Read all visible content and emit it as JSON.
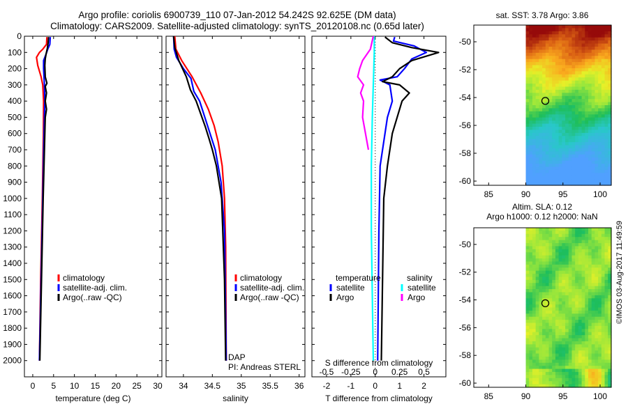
{
  "title": {
    "line1": "Argo profile: coriolis 6900739_110 07-Jan-2012 54.242S 92.625E (DM data)",
    "line2": "Climatology: CARS2009. Satellite-adjusted climatology: synTS_20120108.nc (0.65d later)"
  },
  "colors": {
    "climatology": "#ff0000",
    "satellite": "#0000ff",
    "argo": "#000000",
    "sat_salinity": "#00ffff",
    "argo_salinity": "#ff00ff"
  },
  "chart_data": [
    {
      "type": "line",
      "id": "temperature",
      "xlabel": "temperature (deg C)",
      "xlim": [
        -2,
        31
      ],
      "xticks": [
        "0",
        "5",
        "10",
        "15",
        "20",
        "25",
        "30"
      ],
      "xtick_values": [
        0,
        5,
        10,
        15,
        20,
        25,
        30
      ],
      "ylim": [
        0,
        2100
      ],
      "ytick_values": [
        0,
        100,
        200,
        300,
        400,
        500,
        600,
        700,
        800,
        900,
        1000,
        1100,
        1200,
        1300,
        1400,
        1500,
        1600,
        1700,
        1800,
        1900,
        2000
      ],
      "yticks": [
        "0",
        "100",
        "200",
        "300",
        "400",
        "500",
        "600",
        "700",
        "800",
        "900",
        "1000",
        "1100",
        "1200",
        "1300",
        "1400",
        "1500",
        "1600",
        "1700",
        "1800",
        "1900",
        "2000"
      ],
      "legend": [
        "climatology",
        "satellite-adj. clim.",
        "Argo(..raw -QC)"
      ],
      "series": [
        {
          "name": "climatology",
          "depth": [
            5,
            50,
            80,
            100,
            130,
            180,
            250,
            300,
            400,
            600,
            1000,
            1500,
            2000
          ],
          "values": [
            3.4,
            3.3,
            2.4,
            1.6,
            0.9,
            1.2,
            2.0,
            2.4,
            2.6,
            2.55,
            2.3,
            1.9,
            1.6
          ]
        },
        {
          "name": "satellite-adj. clim.",
          "depth": [
            5,
            50,
            80,
            110,
            150,
            200,
            300,
            400,
            600,
            1000,
            1500,
            2000
          ],
          "values": [
            4.2,
            4.1,
            3.6,
            3.2,
            2.6,
            2.6,
            2.8,
            2.9,
            2.7,
            2.4,
            2.0,
            1.6
          ]
        },
        {
          "name": "Argo(..raw -QC)",
          "depth": [
            5,
            40,
            75,
            110,
            140,
            180,
            250,
            290,
            310,
            350,
            400,
            450,
            500,
            1000,
            1500,
            2000
          ],
          "values": [
            3.8,
            3.7,
            3.5,
            3.2,
            3.0,
            2.9,
            3.0,
            3.4,
            3.0,
            3.3,
            3.0,
            3.3,
            3.0,
            2.5,
            2.1,
            1.7
          ]
        }
      ]
    },
    {
      "type": "line",
      "id": "salinity",
      "xlabel": "salinity",
      "xlim": [
        33.7,
        36.1
      ],
      "xticks": [
        "34",
        "34.5",
        "35",
        "35.5",
        "36"
      ],
      "xtick_values": [
        34,
        34.5,
        35,
        35.5,
        36
      ],
      "ylim": [
        0,
        2100
      ],
      "legend": [
        "climatology",
        "satellite-adj. clim.",
        "Argo(..raw -QC)"
      ],
      "annotations": [
        "DAP",
        "PI: Andreas STERL"
      ],
      "series": [
        {
          "name": "climatology",
          "depth": [
            0,
            80,
            150,
            250,
            350,
            450,
            550,
            650,
            800,
            1000,
            1300,
            2000
          ],
          "values": [
            33.85,
            33.87,
            33.97,
            34.15,
            34.3,
            34.43,
            34.53,
            34.6,
            34.67,
            34.71,
            34.73,
            34.74
          ]
        },
        {
          "name": "satellite-adj. clim.",
          "depth": [
            0,
            80,
            130,
            200,
            260,
            340,
            400,
            500,
            600,
            700,
            900,
            1200,
            2000
          ],
          "values": [
            33.83,
            33.84,
            33.88,
            34.0,
            34.13,
            34.18,
            34.28,
            34.37,
            34.46,
            34.55,
            34.65,
            34.71,
            34.74
          ]
        },
        {
          "name": "Argo(..raw -QC)",
          "depth": [
            0,
            70,
            150,
            250,
            330,
            400,
            480,
            560,
            640,
            700,
            800,
            1000,
            1500,
            2000
          ],
          "values": [
            33.83,
            33.85,
            33.92,
            34.05,
            34.12,
            34.22,
            34.3,
            34.38,
            34.45,
            34.5,
            34.57,
            34.66,
            34.71,
            34.73
          ]
        }
      ]
    },
    {
      "type": "line",
      "id": "differences",
      "xlabel": "T difference from climatology",
      "xlim": [
        -2.6,
        2.9
      ],
      "xticks": [
        "-2",
        "-1",
        "0",
        "1",
        "2"
      ],
      "xtick_values": [
        -2,
        -1,
        0,
        1,
        2
      ],
      "top_xlabel": "S difference from climatology",
      "top_xticks": [
        "-0.5",
        "-0.25",
        "0",
        "0.25",
        "0.5"
      ],
      "top_xtick_values": [
        -0.5,
        -0.25,
        0,
        0.25,
        0.5
      ],
      "ylim": [
        0,
        2100
      ],
      "legend_groups": [
        {
          "title": "temperature",
          "items": [
            "satellite",
            "Argo"
          ]
        },
        {
          "title": "salinity",
          "items": [
            "satellite",
            "Argo"
          ]
        }
      ],
      "series": [
        {
          "name": "temperature satellite",
          "axis": "T",
          "depth": [
            5,
            30,
            60,
            100,
            140,
            200,
            250,
            270,
            300,
            400,
            500,
            800,
            1200,
            2000
          ],
          "values": [
            0.8,
            0.75,
            1.6,
            2.1,
            1.5,
            1.2,
            0.9,
            0.2,
            0.6,
            0.7,
            0.5,
            0.2,
            0.15,
            0.1
          ]
        },
        {
          "name": "temperature Argo",
          "axis": "T",
          "depth": [
            5,
            40,
            70,
            100,
            150,
            200,
            250,
            280,
            300,
            350,
            400,
            500,
            600,
            800,
            1000,
            1500,
            2000
          ],
          "values": [
            0.4,
            0.7,
            1.5,
            2.6,
            1.5,
            1.0,
            0.7,
            0.3,
            1.0,
            1.4,
            1.1,
            0.9,
            0.7,
            0.5,
            0.35,
            0.3,
            0.25
          ]
        },
        {
          "name": "salinity satellite",
          "axis": "S",
          "depth": [
            0,
            100,
            300,
            500,
            800,
            1200,
            1600,
            2000
          ],
          "values": [
            -0.01,
            -0.01,
            -0.02,
            -0.03,
            -0.04,
            -0.04,
            -0.03,
            -0.02
          ]
        },
        {
          "name": "salinity Argo",
          "axis": "S",
          "depth": [
            0,
            80,
            150,
            200,
            250,
            300,
            350,
            400,
            500,
            600,
            700
          ],
          "values": [
            -0.02,
            -0.05,
            -0.13,
            -0.16,
            -0.18,
            -0.12,
            -0.15,
            -0.12,
            -0.13,
            -0.1,
            -0.07
          ]
        }
      ]
    },
    {
      "type": "heatmap",
      "id": "sst_map",
      "title": "sat. SST: 3.78  Argo: 3.86",
      "xticks": [
        "85",
        "90",
        "95",
        "100"
      ],
      "xtick_values": [
        85,
        90,
        95,
        100
      ],
      "yticks": [
        "-50",
        "-52",
        "-54",
        "-56",
        "-58",
        "-60"
      ],
      "ytick_values": [
        -50,
        -52,
        -54,
        -56,
        -58,
        -60
      ],
      "xlim": [
        83,
        101.5
      ],
      "ylim": [
        -60.3,
        -48.8
      ],
      "data_xlim": [
        90,
        101.5
      ],
      "marker": {
        "lon": 92.625,
        "lat": -54.242
      }
    },
    {
      "type": "heatmap",
      "id": "sla_map",
      "title": [
        "Altim. SLA: 0.12",
        "Argo h1000: 0.12 h2000: NaN"
      ],
      "xticks": [
        "85",
        "90",
        "95",
        "100"
      ],
      "xtick_values": [
        85,
        90,
        95,
        100
      ],
      "yticks": [
        "-50",
        "-52",
        "-54",
        "-56",
        "-58",
        "-60"
      ],
      "ytick_values": [
        -50,
        -52,
        -54,
        -56,
        -58,
        -60
      ],
      "xlim": [
        83,
        101.5
      ],
      "ylim": [
        -60.3,
        -48.8
      ],
      "data_xlim": [
        90,
        101.5
      ],
      "marker": {
        "lon": 92.625,
        "lat": -54.242
      }
    }
  ],
  "watermark": "©IMOS 03-Aug-2017 11:49:59"
}
